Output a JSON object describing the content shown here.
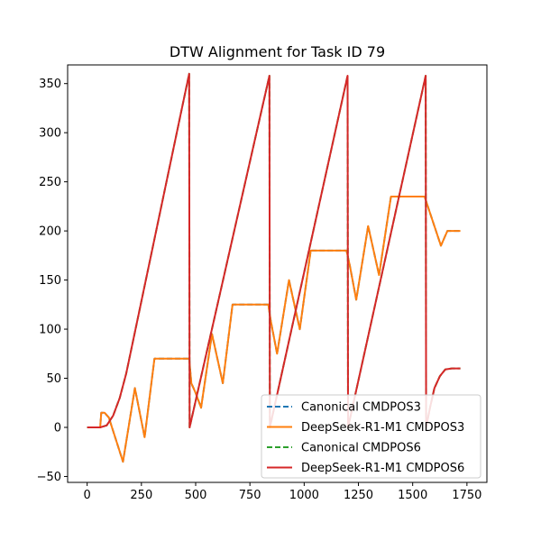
{
  "chart_data": {
    "type": "line",
    "title": "DTW Alignment for Task ID 79",
    "xlabel": "",
    "ylabel": "",
    "xlim": [
      -90,
      1842
    ],
    "ylim": [
      -56,
      369
    ],
    "x_ticks": [
      0,
      250,
      500,
      750,
      1000,
      1250,
      1500,
      1750
    ],
    "y_ticks": [
      -50,
      0,
      50,
      100,
      150,
      200,
      250,
      300,
      350
    ],
    "grid": false,
    "legend_position": "lower right",
    "series": [
      {
        "name": "Canonical CMDPOS3",
        "color": "#1f77b4",
        "style": "dashed",
        "points": [
          [
            0,
            0
          ],
          [
            60,
            0
          ],
          [
            65,
            15
          ],
          [
            80,
            15
          ],
          [
            100,
            10
          ],
          [
            165,
            -35
          ],
          [
            220,
            40
          ],
          [
            265,
            -10
          ],
          [
            310,
            70
          ],
          [
            470,
            70
          ],
          [
            480,
            45
          ],
          [
            500,
            35
          ],
          [
            525,
            20
          ],
          [
            575,
            95
          ],
          [
            625,
            45
          ],
          [
            670,
            125
          ],
          [
            835,
            125
          ],
          [
            845,
            110
          ],
          [
            875,
            75
          ],
          [
            930,
            150
          ],
          [
            980,
            100
          ],
          [
            1030,
            180
          ],
          [
            1195,
            180
          ],
          [
            1210,
            165
          ],
          [
            1240,
            130
          ],
          [
            1295,
            205
          ],
          [
            1345,
            155
          ],
          [
            1400,
            235
          ],
          [
            1555,
            235
          ],
          [
            1570,
            225
          ],
          [
            1630,
            185
          ],
          [
            1660,
            200
          ],
          [
            1720,
            200
          ]
        ]
      },
      {
        "name": "DeepSeek-R1-M1 CMDPOS3",
        "color": "#ff7f0e",
        "style": "solid",
        "points": [
          [
            0,
            0
          ],
          [
            60,
            0
          ],
          [
            65,
            15
          ],
          [
            80,
            15
          ],
          [
            100,
            10
          ],
          [
            165,
            -35
          ],
          [
            220,
            40
          ],
          [
            265,
            -10
          ],
          [
            310,
            70
          ],
          [
            470,
            70
          ],
          [
            480,
            45
          ],
          [
            500,
            35
          ],
          [
            525,
            20
          ],
          [
            575,
            95
          ],
          [
            625,
            45
          ],
          [
            670,
            125
          ],
          [
            835,
            125
          ],
          [
            845,
            110
          ],
          [
            875,
            75
          ],
          [
            930,
            150
          ],
          [
            980,
            100
          ],
          [
            1030,
            180
          ],
          [
            1195,
            180
          ],
          [
            1210,
            165
          ],
          [
            1240,
            130
          ],
          [
            1295,
            205
          ],
          [
            1345,
            155
          ],
          [
            1400,
            235
          ],
          [
            1555,
            235
          ],
          [
            1570,
            225
          ],
          [
            1630,
            185
          ],
          [
            1660,
            200
          ],
          [
            1720,
            200
          ]
        ]
      },
      {
        "name": "Canonical CMDPOS6",
        "color": "#2ca02c",
        "style": "dashed",
        "points": [
          [
            0,
            0
          ],
          [
            60,
            0
          ],
          [
            90,
            2
          ],
          [
            120,
            12
          ],
          [
            150,
            30
          ],
          [
            180,
            55
          ],
          [
            470,
            360
          ],
          [
            472,
            0
          ],
          [
            840,
            358
          ],
          [
            842,
            0
          ],
          [
            1200,
            358
          ],
          [
            1202,
            0
          ],
          [
            1560,
            358
          ],
          [
            1562,
            0
          ],
          [
            1580,
            20
          ],
          [
            1600,
            40
          ],
          [
            1625,
            52
          ],
          [
            1650,
            59
          ],
          [
            1680,
            60
          ],
          [
            1720,
            60
          ]
        ]
      },
      {
        "name": "DeepSeek-R1-M1 CMDPOS6",
        "color": "#d62728",
        "style": "solid",
        "points": [
          [
            0,
            0
          ],
          [
            60,
            0
          ],
          [
            90,
            2
          ],
          [
            120,
            12
          ],
          [
            150,
            30
          ],
          [
            180,
            55
          ],
          [
            470,
            360
          ],
          [
            472,
            0
          ],
          [
            840,
            358
          ],
          [
            842,
            0
          ],
          [
            1200,
            358
          ],
          [
            1202,
            0
          ],
          [
            1560,
            358
          ],
          [
            1562,
            0
          ],
          [
            1580,
            20
          ],
          [
            1600,
            40
          ],
          [
            1625,
            52
          ],
          [
            1650,
            59
          ],
          [
            1680,
            60
          ],
          [
            1720,
            60
          ]
        ]
      }
    ]
  }
}
